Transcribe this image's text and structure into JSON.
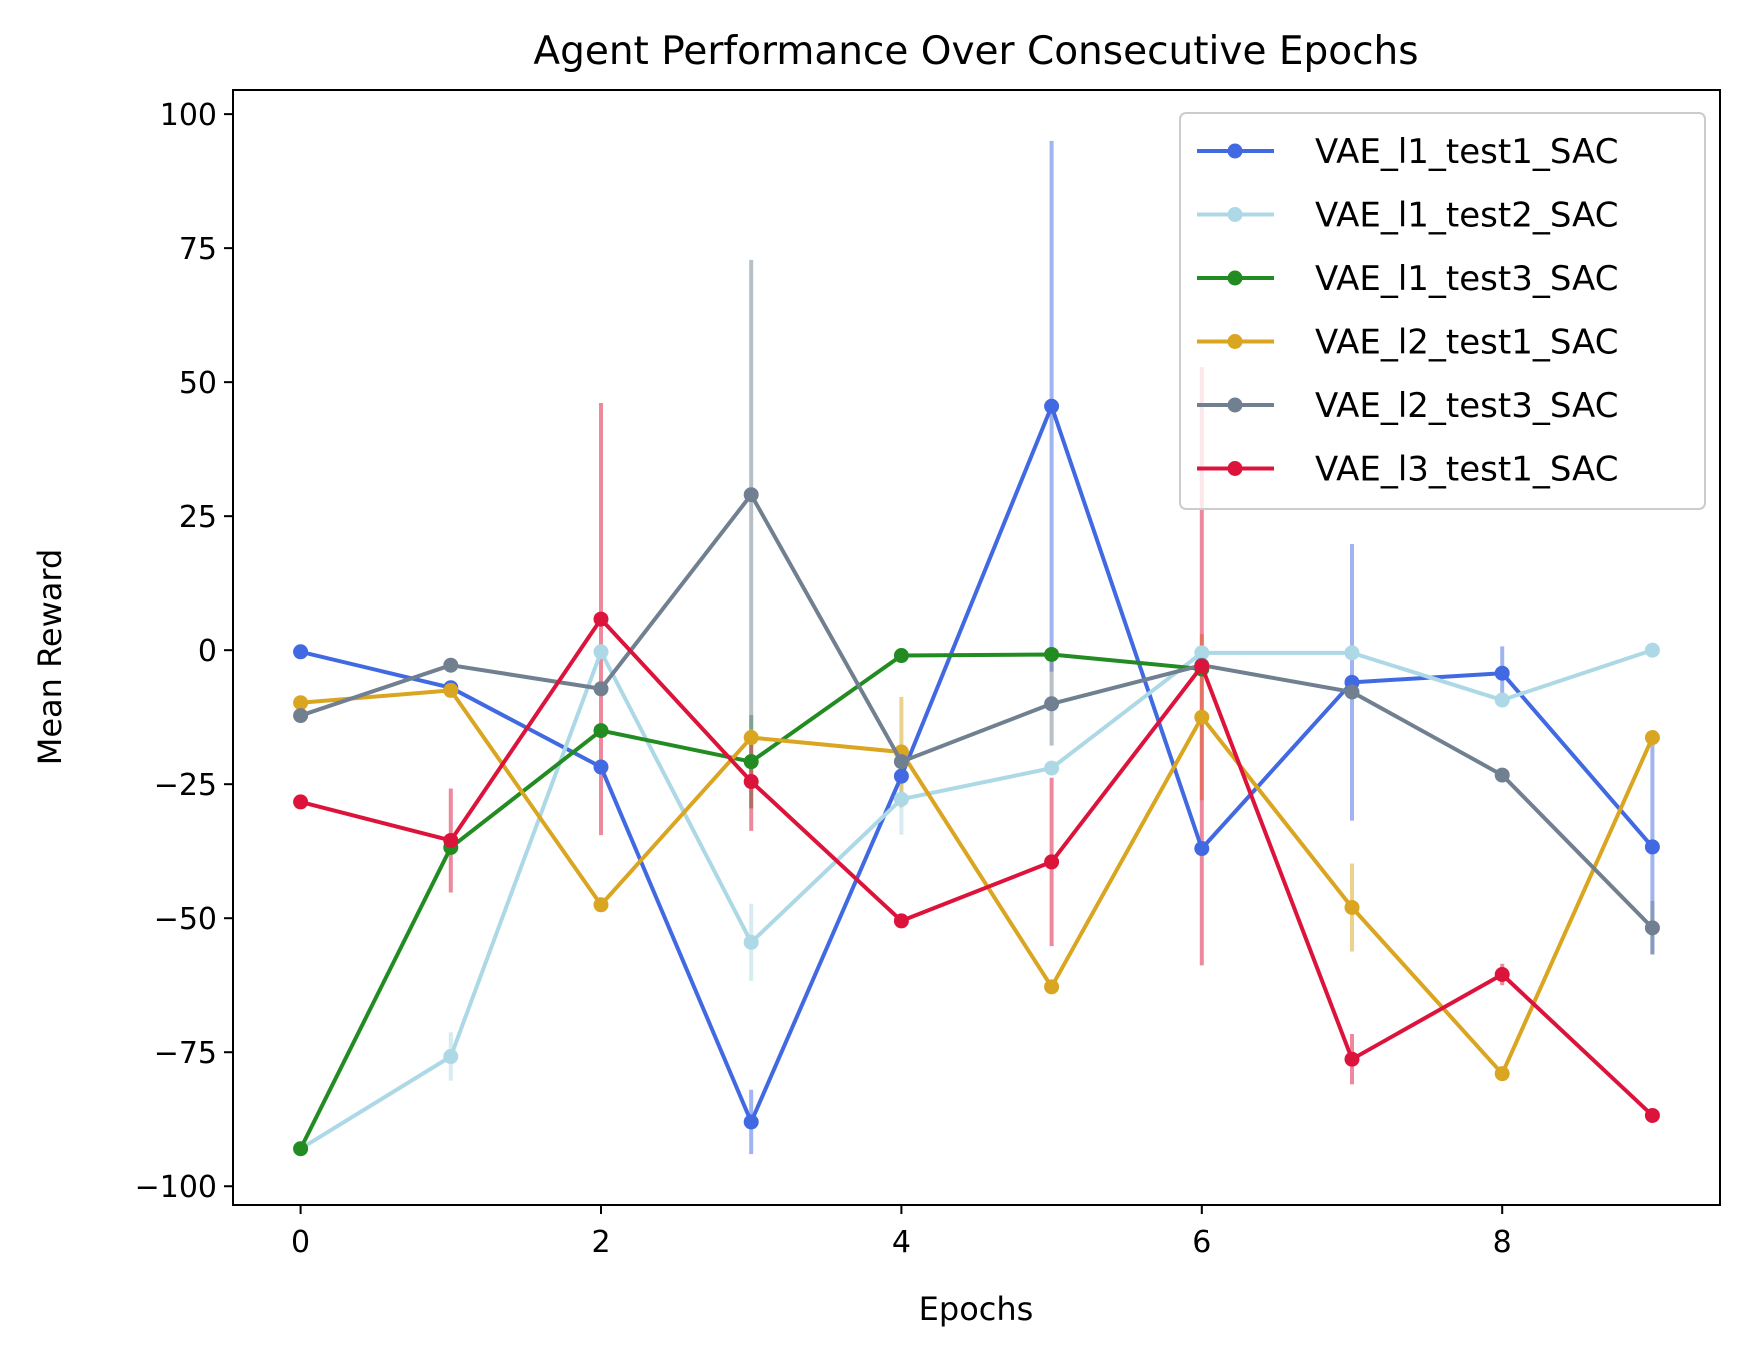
{
  "chart_data": {
    "type": "line",
    "title": "Agent Performance Over Consecutive Epochs",
    "xlabel": "Epochs",
    "ylabel": "Mean Reward",
    "xlim": [
      -0.45,
      9.45
    ],
    "ylim": [
      -103.5,
      104.5
    ],
    "xticks": [
      0,
      2,
      4,
      6,
      8
    ],
    "xtick_labels": [
      "0",
      "2",
      "4",
      "6",
      "8"
    ],
    "yticks": [
      -100,
      -75,
      -50,
      -25,
      0,
      25,
      50,
      75,
      100
    ],
    "ytick_labels": [
      "−100",
      "−75",
      "−50",
      "−25",
      "0",
      "25",
      "50",
      "75",
      "100"
    ],
    "grid": false,
    "legend_position": "top-right",
    "x": [
      0,
      1,
      2,
      3,
      4,
      5,
      6,
      7,
      8,
      9
    ],
    "series": [
      {
        "name": "VAE_l1_test1_SAC",
        "color": "#4169E1",
        "values": [
          -0.3,
          -7,
          -21.8,
          -88,
          -23.5,
          45.5,
          -37,
          -6,
          -4.3,
          -36.7
        ],
        "errors": [
          0,
          0,
          0,
          6,
          0,
          49.5,
          0,
          25.8,
          5,
          20
        ]
      },
      {
        "name": "VAE_l1_test2_SAC",
        "color": "#ADD8E6",
        "values": [
          -93,
          -75.8,
          -0.3,
          -54.5,
          -27.8,
          -22,
          -0.5,
          -0.5,
          -9.3,
          0
        ],
        "errors": [
          0,
          4.5,
          0,
          7.2,
          6.6,
          0,
          0,
          0,
          0,
          0
        ]
      },
      {
        "name": "VAE_l1_test3_SAC",
        "color": "#228B22",
        "values": [
          -93,
          -36.8,
          -15,
          -20.8,
          -1,
          -0.8,
          -3.5,
          null,
          null,
          null
        ],
        "errors": [
          0,
          0,
          0,
          8.7,
          0,
          0,
          0,
          null,
          null,
          null
        ]
      },
      {
        "name": "VAE_l2_test1_SAC",
        "color": "#DAA520",
        "values": [
          -9.8,
          -7.5,
          -47.5,
          -16.3,
          -19,
          -62.8,
          -12.5,
          -48,
          -79,
          -16.3
        ],
        "errors": [
          0,
          0,
          0,
          0,
          10.3,
          0,
          15.5,
          8.2,
          0,
          0
        ]
      },
      {
        "name": "VAE_l2_test3_SAC",
        "color": "#708090",
        "values": [
          -12.2,
          -2.8,
          -7.2,
          29,
          -20.8,
          -10,
          -2.8,
          -7.8,
          -23.3,
          -51.8
        ],
        "errors": [
          0,
          0,
          0,
          43.8,
          0,
          7.8,
          0,
          0,
          0,
          5
        ]
      },
      {
        "name": "VAE_l3_test1_SAC",
        "color": "#DC143C",
        "values": [
          -28.3,
          -35.5,
          5.8,
          -24.5,
          -50.5,
          -39.5,
          -3,
          -76.3,
          -60.5,
          -86.8
        ],
        "errors": [
          0,
          9.7,
          40.3,
          9.2,
          0,
          15.7,
          55.8,
          4.7,
          2,
          0
        ]
      }
    ]
  }
}
